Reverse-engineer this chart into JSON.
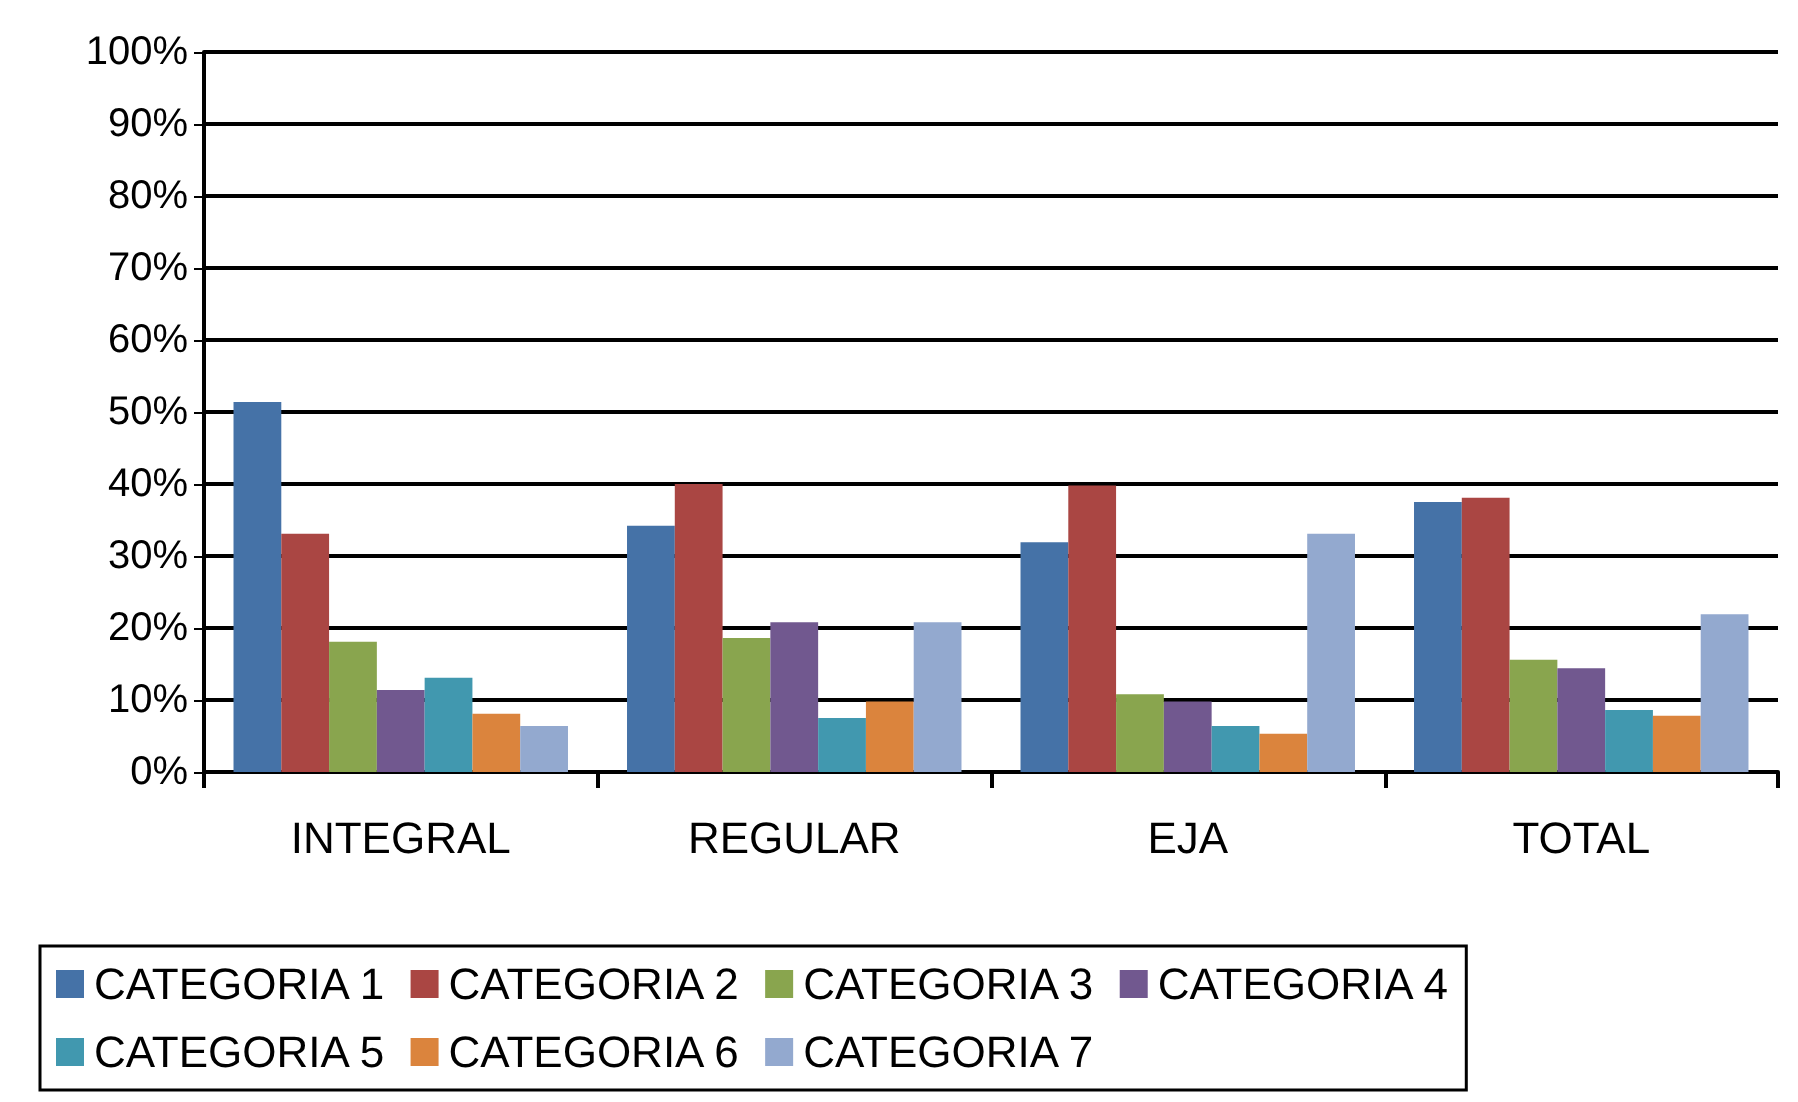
{
  "chart_data": {
    "type": "bar",
    "categories": [
      "INTEGRAL",
      "REGULAR",
      "EJA",
      "TOTAL"
    ],
    "series": [
      {
        "name": "CATEGORIA 1",
        "color": "#4572a7",
        "values": [
          51.4,
          34.2,
          31.9,
          37.5
        ]
      },
      {
        "name": "CATEGORIA 2",
        "color": "#aa4643",
        "values": [
          33.1,
          40,
          39.8,
          38.1
        ]
      },
      {
        "name": "CATEGORIA 3",
        "color": "#89a54e",
        "values": [
          18.1,
          18.6,
          10.8,
          15.6
        ]
      },
      {
        "name": "CATEGORIA 4",
        "color": "#71588f",
        "values": [
          11.4,
          20.8,
          9.8,
          14.4
        ]
      },
      {
        "name": "CATEGORIA 5",
        "color": "#4198af",
        "values": [
          13.1,
          7.5,
          6.4,
          8.6
        ]
      },
      {
        "name": "CATEGORIA 6",
        "color": "#db843d",
        "values": [
          8.1,
          9.8,
          5.3,
          7.8
        ]
      },
      {
        "name": "CATEGORIA 7",
        "color": "#93a9cf",
        "values": [
          6.4,
          20.8,
          33.1,
          21.9
        ]
      }
    ],
    "ylim": [
      0,
      100
    ],
    "yticks": [
      {
        "value": 0,
        "label": "0%"
      },
      {
        "value": 10,
        "label": "10%"
      },
      {
        "value": 20,
        "label": "20%"
      },
      {
        "value": 30,
        "label": "30%"
      },
      {
        "value": 40,
        "label": "40%"
      },
      {
        "value": 50,
        "label": "50%"
      },
      {
        "value": 60,
        "label": "60%"
      },
      {
        "value": 70,
        "label": "70%"
      },
      {
        "value": 80,
        "label": "80%"
      },
      {
        "value": 90,
        "label": "90%"
      },
      {
        "value": 100,
        "label": "100%"
      }
    ],
    "grid": "y",
    "legend": "bottom"
  }
}
